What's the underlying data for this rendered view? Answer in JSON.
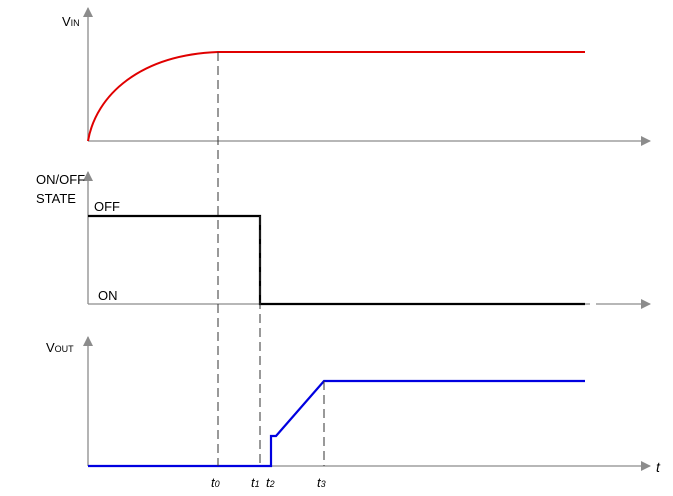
{
  "panels": {
    "vin": {
      "label_main": "V",
      "label_sub": "IN",
      "color": "#e00000"
    },
    "state": {
      "label_line1": "ON/OFF",
      "label_line2": "STATE",
      "off_label": "OFF",
      "on_label": "ON",
      "color": "#000000"
    },
    "vout": {
      "label_main": "V",
      "label_sub": "OUT",
      "color": "#0000e0"
    }
  },
  "time_axis": {
    "label": "t",
    "markers": [
      {
        "main": "t",
        "sub": "0"
      },
      {
        "main": "t",
        "sub": "1"
      },
      {
        "main": "t",
        "sub": "2"
      },
      {
        "main": "t",
        "sub": "3"
      }
    ]
  }
}
